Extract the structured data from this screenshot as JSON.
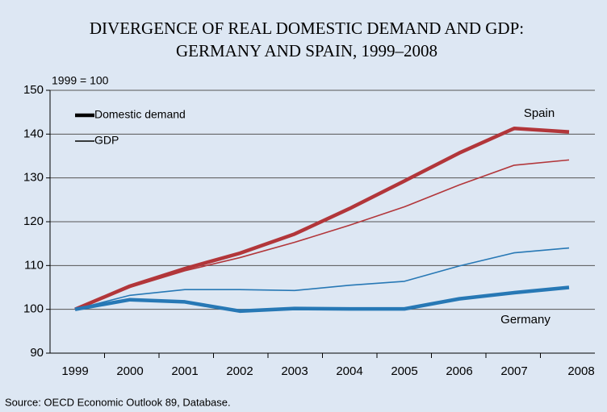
{
  "chart_data": {
    "type": "line",
    "title": [
      "DIVERGENCE OF REAL DOMESTIC DEMAND AND GDP:",
      "GERMANY AND SPAIN, 1999–2008"
    ],
    "y_label": "1999 = 100",
    "source": "Source: OECD Economic Outlook 89, Database.",
    "categories": [
      "1999",
      "2000",
      "2001",
      "2002",
      "2003",
      "2004",
      "2005",
      "2006",
      "2007",
      "2008"
    ],
    "legend": [
      "Domestic demand",
      "GDP"
    ],
    "legend_position": "top-left",
    "grid": true,
    "ylim": [
      90,
      150
    ],
    "yticks": [
      90,
      100,
      110,
      120,
      130,
      140,
      150
    ],
    "countries": [
      {
        "name": "Spain",
        "color": "#b2363a",
        "domestic_demand": [
          100,
          105.3,
          109.3,
          112.8,
          117.2,
          123,
          129.3,
          135.7,
          141.3,
          140.5
        ],
        "gdp": [
          100,
          105,
          108.8,
          111.8,
          115.3,
          119.2,
          123.4,
          128.4,
          132.9,
          134.1
        ]
      },
      {
        "name": "Germany",
        "color": "#2778b5",
        "domestic_demand": [
          100,
          102.2,
          101.7,
          99.6,
          100.2,
          100.1,
          100.1,
          102.4,
          103.8,
          105
        ],
        "gdp": [
          100,
          103.2,
          104.5,
          104.5,
          104.3,
          105.5,
          106.4,
          109.9,
          112.9,
          114
        ]
      }
    ]
  }
}
